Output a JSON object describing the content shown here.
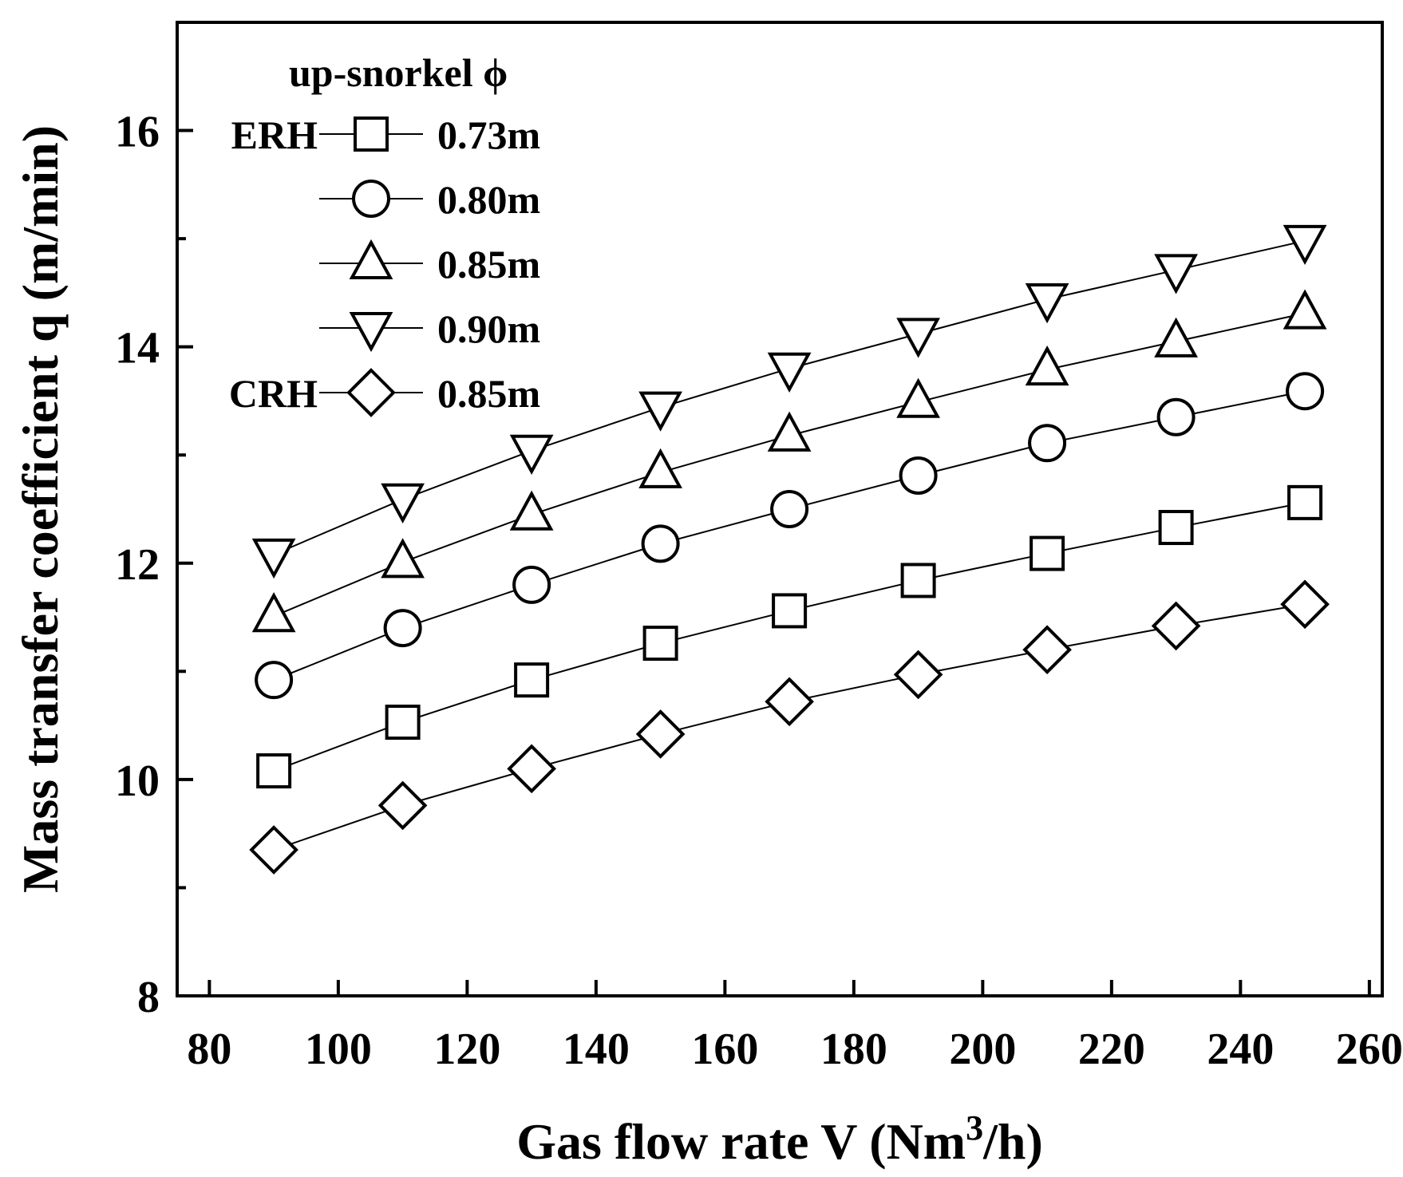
{
  "chart_data": {
    "type": "line",
    "xlabel": "Gas flow rate V (Nm",
    "xlabel_superscript": "3",
    "xlabel_suffix": "/h)",
    "ylabel": "Mass transfer coefficient q (m/min)",
    "xlim": [
      75,
      262
    ],
    "ylim": [
      8,
      17
    ],
    "xticks": [
      80,
      100,
      120,
      140,
      160,
      180,
      200,
      220,
      240,
      260
    ],
    "yticks": [
      8,
      10,
      12,
      14,
      16
    ],
    "y_minor_ticks": [
      9,
      11,
      13,
      15
    ],
    "grid": false,
    "legend_placement": "top-left",
    "legend_title": "up-snorkel ϕ",
    "x": [
      90,
      110,
      130,
      150,
      170,
      190,
      210,
      230,
      250
    ],
    "series": [
      {
        "name": "0.73m",
        "group": "ERH",
        "marker": "square",
        "values": [
          10.08,
          10.53,
          10.92,
          11.26,
          11.56,
          11.84,
          12.09,
          12.33,
          12.56
        ]
      },
      {
        "name": "0.80m",
        "group": "",
        "marker": "circle",
        "values": [
          10.92,
          11.4,
          11.8,
          12.18,
          12.5,
          12.81,
          13.11,
          13.35,
          13.59
        ]
      },
      {
        "name": "0.85m",
        "group": "",
        "marker": "triangle-up",
        "values": [
          11.51,
          12.01,
          12.45,
          12.84,
          13.18,
          13.49,
          13.79,
          14.05,
          14.31
        ]
      },
      {
        "name": "0.90m",
        "group": "",
        "marker": "triangle-down",
        "values": [
          12.08,
          12.59,
          13.04,
          13.44,
          13.8,
          14.12,
          14.44,
          14.71,
          14.98
        ]
      },
      {
        "name": "0.85m",
        "group": "CRH",
        "marker": "diamond",
        "values": [
          9.35,
          9.76,
          10.1,
          10.42,
          10.72,
          10.97,
          11.2,
          11.42,
          11.62
        ]
      }
    ]
  }
}
